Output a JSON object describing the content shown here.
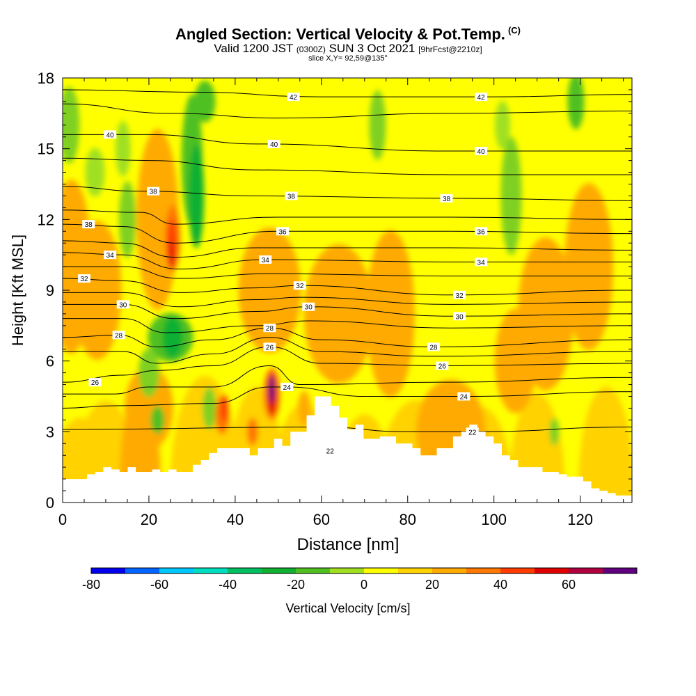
{
  "title": {
    "main": "Angled Section: Vertical Velocity & Pot.Temp.",
    "copyright": "(C)",
    "valid_prefix": "Valid 1200 JST",
    "valid_z": "(0300Z)",
    "valid_date": "SUN 3 Oct 2021",
    "forecast": "[9hrFcst@2210z]",
    "slice": "slice X,Y= 92,59@135°"
  },
  "chart_data": {
    "type": "heatmap",
    "xlabel": "Distance [nm]",
    "ylabel": "Height [Kft MSL]",
    "xlim": [
      0,
      132
    ],
    "ylim": [
      0,
      18
    ],
    "x_ticks": [
      "0",
      "20",
      "40",
      "60",
      "80",
      "100",
      "120"
    ],
    "y_ticks": [
      "0",
      "3",
      "6",
      "9",
      "12",
      "15",
      "18"
    ],
    "colorbar": {
      "label": "Vertical Velocity [cm/s]",
      "tick_labels": [
        "-80",
        "-60",
        "-40",
        "-20",
        "0",
        "20",
        "40",
        "60"
      ],
      "bins": [
        -80,
        -70,
        -60,
        -50,
        -40,
        -30,
        -20,
        -10,
        0,
        10,
        20,
        30,
        40,
        50,
        60,
        70
      ],
      "colors": [
        "#0000ee",
        "#0064ff",
        "#00c8ff",
        "#00e0c0",
        "#00c060",
        "#10b030",
        "#50c020",
        "#a0e020",
        "#ffff00",
        "#ffd200",
        "#ffaa00",
        "#ff7800",
        "#ff3c00",
        "#e00000",
        "#b00040",
        "#600080"
      ]
    },
    "contour_levels": [
      "22",
      "24",
      "26",
      "28",
      "30",
      "32",
      "34",
      "36",
      "38",
      "40",
      "42"
    ],
    "contour_labels": [
      {
        "text": "42",
        "x": 53.5,
        "y": 17.2
      },
      {
        "text": "42",
        "x": 97,
        "y": 17.2
      },
      {
        "text": "40",
        "x": 11,
        "y": 15.6
      },
      {
        "text": "40",
        "x": 49,
        "y": 15.2
      },
      {
        "text": "40",
        "x": 97,
        "y": 14.9
      },
      {
        "text": "38",
        "x": 21,
        "y": 13.2
      },
      {
        "text": "38",
        "x": 53,
        "y": 13.0
      },
      {
        "text": "38",
        "x": 89,
        "y": 12.9
      },
      {
        "text": "38",
        "x": 6,
        "y": 11.8
      },
      {
        "text": "36",
        "x": 51,
        "y": 11.5
      },
      {
        "text": "36",
        "x": 97,
        "y": 11.5
      },
      {
        "text": "34",
        "x": 11,
        "y": 10.5
      },
      {
        "text": "34",
        "x": 47,
        "y": 10.3
      },
      {
        "text": "34",
        "x": 97,
        "y": 10.2
      },
      {
        "text": "32",
        "x": 5,
        "y": 9.5
      },
      {
        "text": "32",
        "x": 55,
        "y": 9.2
      },
      {
        "text": "32",
        "x": 92,
        "y": 8.8
      },
      {
        "text": "30",
        "x": 14,
        "y": 8.4
      },
      {
        "text": "30",
        "x": 57,
        "y": 8.3
      },
      {
        "text": "30",
        "x": 92,
        "y": 7.9
      },
      {
        "text": "28",
        "x": 48,
        "y": 7.4
      },
      {
        "text": "28",
        "x": 13,
        "y": 7.1
      },
      {
        "text": "28",
        "x": 86,
        "y": 6.6
      },
      {
        "text": "26",
        "x": 48,
        "y": 6.6
      },
      {
        "text": "26",
        "x": 88,
        "y": 5.8
      },
      {
        "text": "26",
        "x": 7.5,
        "y": 5.1
      },
      {
        "text": "24",
        "x": 52,
        "y": 4.9
      },
      {
        "text": "24",
        "x": 93,
        "y": 4.5
      },
      {
        "text": "22",
        "x": 62,
        "y": 2.2
      },
      {
        "text": "22",
        "x": 95,
        "y": 3.0
      }
    ],
    "contour_lines": [
      {
        "level": 42,
        "points": [
          [
            0,
            17.5
          ],
          [
            30,
            17.4
          ],
          [
            60,
            17.2
          ],
          [
            100,
            17.2
          ],
          [
            132,
            17.3
          ]
        ]
      },
      {
        "level": 41,
        "points": [
          [
            0,
            16.9
          ],
          [
            25,
            16.5
          ],
          [
            50,
            16.3
          ],
          [
            90,
            16.5
          ],
          [
            132,
            16.6
          ]
        ]
      },
      {
        "level": 40,
        "points": [
          [
            0,
            15.6
          ],
          [
            20,
            15.6
          ],
          [
            45,
            15.2
          ],
          [
            90,
            14.9
          ],
          [
            132,
            14.9
          ]
        ]
      },
      {
        "level": 39,
        "points": [
          [
            0,
            14.6
          ],
          [
            20,
            14.5
          ],
          [
            45,
            14.1
          ],
          [
            90,
            13.9
          ],
          [
            132,
            13.9
          ]
        ]
      },
      {
        "level": 38,
        "points": [
          [
            0,
            13.4
          ],
          [
            18,
            13.2
          ],
          [
            45,
            13.0
          ],
          [
            90,
            12.9
          ],
          [
            132,
            12.8
          ]
        ]
      },
      {
        "level": 37,
        "points": [
          [
            0,
            12.4
          ],
          [
            18,
            12.3
          ],
          [
            26,
            11.8
          ],
          [
            50,
            12.1
          ],
          [
            90,
            12.1
          ],
          [
            132,
            12.0
          ]
        ]
      },
      {
        "level": 36,
        "points": [
          [
            0,
            11.8
          ],
          [
            14,
            11.7
          ],
          [
            26,
            11.0
          ],
          [
            50,
            11.5
          ],
          [
            90,
            11.5
          ],
          [
            132,
            11.4
          ]
        ]
      },
      {
        "level": 35,
        "points": [
          [
            0,
            11.1
          ],
          [
            14,
            11.0
          ],
          [
            26,
            10.4
          ],
          [
            45,
            10.8
          ],
          [
            90,
            10.8
          ],
          [
            132,
            10.7
          ]
        ]
      },
      {
        "level": 34,
        "points": [
          [
            0,
            10.6
          ],
          [
            14,
            10.5
          ],
          [
            27,
            9.9
          ],
          [
            47,
            10.3
          ],
          [
            90,
            10.2
          ],
          [
            132,
            10.2
          ]
        ]
      },
      {
        "level": 33,
        "points": [
          [
            0,
            10.0
          ],
          [
            14,
            10.0
          ],
          [
            27,
            9.5
          ],
          [
            48,
            9.7
          ],
          [
            90,
            9.6
          ],
          [
            132,
            9.6
          ]
        ]
      },
      {
        "level": 32,
        "points": [
          [
            0,
            9.5
          ],
          [
            14,
            9.4
          ],
          [
            27,
            8.9
          ],
          [
            45,
            9.1
          ],
          [
            55,
            9.2
          ],
          [
            90,
            8.8
          ],
          [
            132,
            9.0
          ]
        ]
      },
      {
        "level": 31,
        "points": [
          [
            0,
            8.9
          ],
          [
            14,
            8.9
          ],
          [
            27,
            8.3
          ],
          [
            45,
            8.6
          ],
          [
            55,
            8.7
          ],
          [
            90,
            8.4
          ],
          [
            132,
            8.5
          ]
        ]
      },
      {
        "level": 30,
        "points": [
          [
            0,
            8.4
          ],
          [
            14,
            8.4
          ],
          [
            26,
            7.8
          ],
          [
            45,
            8.1
          ],
          [
            57,
            8.3
          ],
          [
            90,
            7.9
          ],
          [
            132,
            8.0
          ]
        ]
      },
      {
        "level": 29,
        "points": [
          [
            0,
            7.8
          ],
          [
            14,
            7.8
          ],
          [
            24,
            7.2
          ],
          [
            45,
            7.5
          ],
          [
            57,
            7.7
          ],
          [
            90,
            7.4
          ],
          [
            132,
            7.5
          ]
        ]
      },
      {
        "level": 28,
        "points": [
          [
            0,
            7.0
          ],
          [
            13,
            7.1
          ],
          [
            22,
            6.6
          ],
          [
            35,
            6.9
          ],
          [
            48,
            7.4
          ],
          [
            60,
            6.9
          ],
          [
            86,
            6.6
          ],
          [
            132,
            6.9
          ]
        ]
      },
      {
        "level": 27,
        "points": [
          [
            0,
            6.4
          ],
          [
            14,
            6.4
          ],
          [
            22,
            5.9
          ],
          [
            35,
            6.3
          ],
          [
            48,
            7.0
          ],
          [
            60,
            6.4
          ],
          [
            86,
            6.2
          ],
          [
            132,
            6.4
          ]
        ]
      },
      {
        "level": 26,
        "points": [
          [
            0,
            5.1
          ],
          [
            14,
            5.4
          ],
          [
            22,
            5.6
          ],
          [
            35,
            5.8
          ],
          [
            48,
            6.6
          ],
          [
            60,
            5.9
          ],
          [
            88,
            5.8
          ],
          [
            132,
            5.9
          ]
        ]
      },
      {
        "level": 25,
        "points": [
          [
            0,
            4.6
          ],
          [
            12,
            4.6
          ],
          [
            20,
            4.9
          ],
          [
            35,
            4.9
          ],
          [
            48,
            5.8
          ],
          [
            55,
            5.0
          ],
          [
            88,
            5.1
          ],
          [
            132,
            5.3
          ]
        ]
      },
      {
        "level": 24,
        "points": [
          [
            0,
            4.0
          ],
          [
            12,
            4.1
          ],
          [
            35,
            4.2
          ],
          [
            48,
            4.9
          ],
          [
            52,
            4.9
          ],
          [
            70,
            4.5
          ],
          [
            93,
            4.5
          ],
          [
            132,
            4.7
          ]
        ]
      },
      {
        "level": 22,
        "points": [
          [
            0,
            3.1
          ],
          [
            60,
            3.2
          ],
          [
            80,
            3.0
          ],
          [
            95,
            3.0
          ],
          [
            132,
            3.2
          ]
        ]
      }
    ],
    "terrain_height_kft": [
      1.0,
      1.0,
      1.0,
      1.2,
      1.3,
      1.5,
      1.4,
      1.3,
      1.5,
      1.3,
      1.3,
      1.4,
      1.3,
      1.4,
      1.3,
      1.3,
      1.6,
      1.8,
      2.1,
      2.3,
      2.3,
      2.3,
      2.3,
      2.0,
      2.3,
      2.3,
      2.7,
      2.4,
      3.0,
      3.0,
      3.7,
      4.5,
      4.5,
      4.1,
      3.6,
      3.1,
      3.3,
      2.7,
      2.7,
      2.8,
      2.8,
      2.5,
      2.5,
      2.3,
      2.0,
      2.0,
      2.3,
      2.3,
      2.8,
      3.0,
      3.3,
      3.0,
      2.8,
      2.5,
      2.0,
      1.8,
      1.5,
      1.5,
      1.5,
      1.3,
      1.3,
      1.2,
      1.1,
      1.1,
      0.9,
      0.6,
      0.5,
      0.4,
      0.3,
      0.3,
      0.3
    ]
  }
}
